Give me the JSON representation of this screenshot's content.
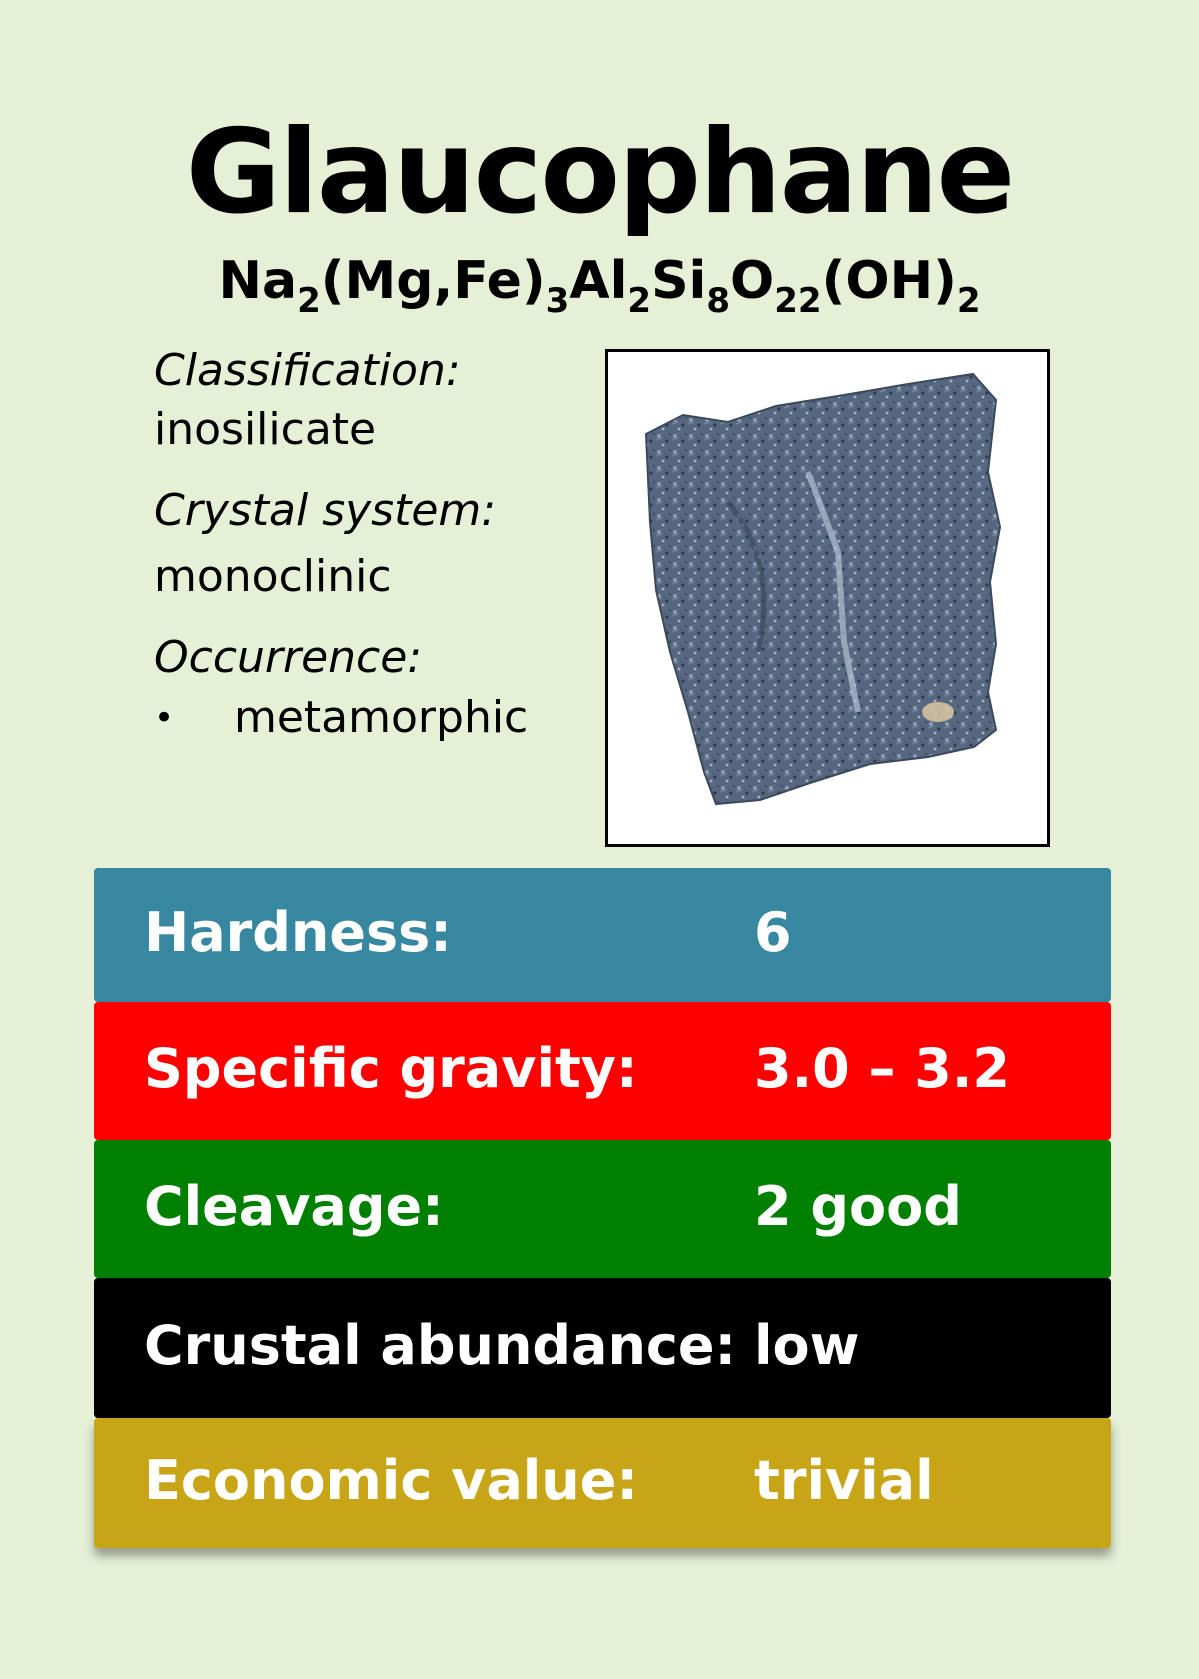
{
  "title": "Glaucophane",
  "formula": [
    {
      "t": "Na"
    },
    {
      "sub": "2"
    },
    {
      "t": "(Mg,Fe)"
    },
    {
      "sub": "3"
    },
    {
      "t": "Al"
    },
    {
      "sub": "2"
    },
    {
      "t": "Si"
    },
    {
      "sub": "8"
    },
    {
      "t": "O"
    },
    {
      "sub": "22"
    },
    {
      "t": "(OH)"
    },
    {
      "sub": "2"
    }
  ],
  "classification": {
    "label": "Classification:",
    "value": "inosilicate"
  },
  "crystal_system": {
    "label": "Crystal system:",
    "value": "monoclinic"
  },
  "occurrence": {
    "label": "Occurrence:",
    "bullet": "•",
    "items": [
      "metamorphic"
    ]
  },
  "photo": {
    "subject": "glaucophane specimen",
    "colors": {
      "rock": "#4f5f78",
      "highlight": "#8c9cb2"
    }
  },
  "properties": [
    {
      "label": "Hardness:",
      "value": "6",
      "color": "#3787a1"
    },
    {
      "label": "Specific gravity:",
      "value": "3.0 – 3.2",
      "color": "#ff0000"
    },
    {
      "label": "Cleavage:",
      "value": "2 good",
      "color": "#008000"
    },
    {
      "label": "Crustal abundance:",
      "value": "low",
      "color": "#000000"
    },
    {
      "label": "Economic value:",
      "value": "trivial",
      "color": "#c7a516"
    }
  ]
}
